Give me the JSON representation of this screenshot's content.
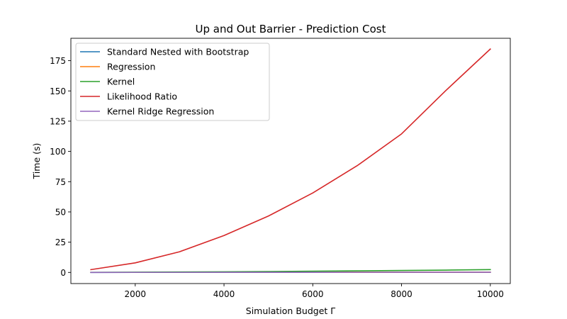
{
  "chart_data": {
    "type": "line",
    "title": "Up and Out Barrier - Prediction Cost",
    "xlabel": "Simulation Budget Γ",
    "ylabel": "Time (s)",
    "xlim": [
      550,
      10450
    ],
    "ylim": [
      -9.2,
      193.5
    ],
    "xticks": [
      2000,
      4000,
      6000,
      8000,
      10000
    ],
    "yticks": [
      0,
      25,
      50,
      75,
      100,
      125,
      150,
      175
    ],
    "grid": false,
    "legend_position": "top-left",
    "x": [
      1000,
      2000,
      3000,
      4000,
      5000,
      6000,
      7000,
      8000,
      9000,
      10000
    ],
    "series": [
      {
        "name": "Standard Nested with Bootstrap",
        "color": "#1f77b4",
        "values": [
          0.01,
          0.02,
          0.03,
          0.04,
          0.05,
          0.06,
          0.07,
          0.08,
          0.09,
          0.1
        ]
      },
      {
        "name": "Regression",
        "color": "#ff7f0e",
        "values": [
          0.02,
          0.03,
          0.05,
          0.06,
          0.08,
          0.1,
          0.12,
          0.14,
          0.16,
          0.18
        ]
      },
      {
        "name": "Kernel",
        "color": "#2ca02c",
        "values": [
          0.05,
          0.2,
          0.35,
          0.5,
          0.75,
          1.0,
          1.3,
          1.6,
          1.9,
          2.3
        ]
      },
      {
        "name": "Likelihood Ratio",
        "color": "#d62728",
        "values": [
          2.3,
          7.9,
          17.1,
          30.5,
          46.6,
          65.7,
          88.2,
          114.5,
          150.4,
          184.6
        ]
      },
      {
        "name": "Kernel Ridge Regression",
        "color": "#9467bd",
        "values": [
          0.01,
          0.02,
          0.03,
          0.05,
          0.06,
          0.08,
          0.1,
          0.12,
          0.14,
          0.16
        ]
      }
    ]
  }
}
